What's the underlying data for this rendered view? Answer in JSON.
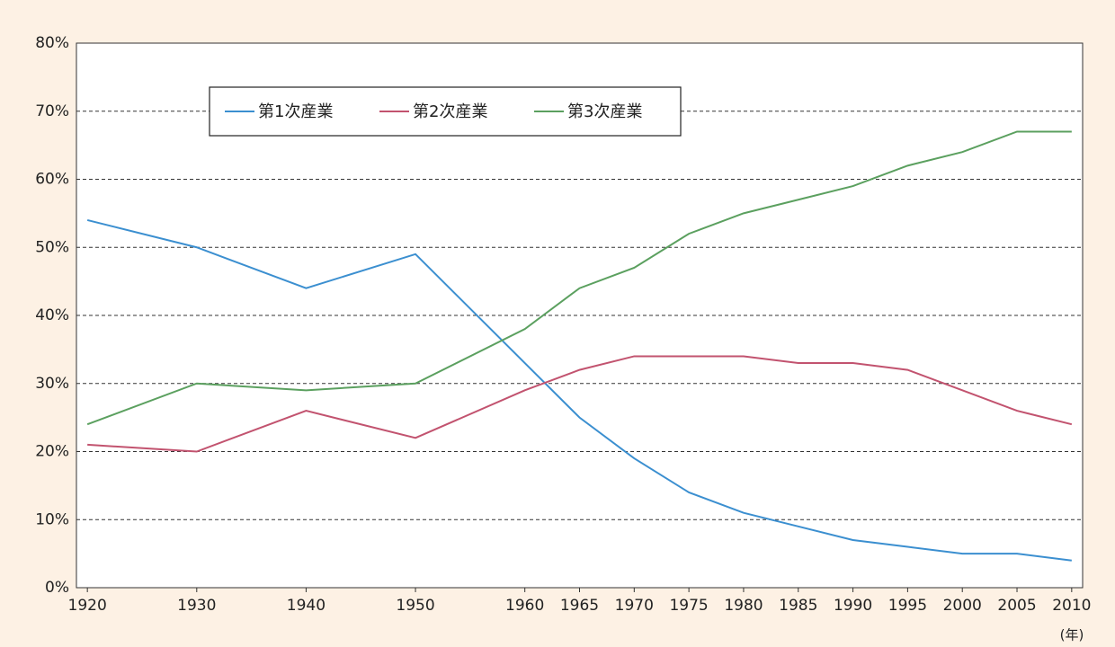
{
  "chart_data": {
    "type": "line",
    "x": [
      1920,
      1930,
      1940,
      1950,
      1960,
      1965,
      1970,
      1975,
      1980,
      1985,
      1990,
      1995,
      2000,
      2005,
      2010
    ],
    "xlim": [
      1919,
      2011
    ],
    "xticks": [
      1920,
      1930,
      1940,
      1950,
      1960,
      1965,
      1970,
      1975,
      1980,
      1985,
      1990,
      1995,
      2000,
      2005,
      2010
    ],
    "xlabel": "(年)",
    "ylim": [
      0,
      80
    ],
    "yticks": [
      {
        "value": 0,
        "label": "0%"
      },
      {
        "value": 10,
        "label": "10%"
      },
      {
        "value": 20,
        "label": "20%"
      },
      {
        "value": 30,
        "label": "30%"
      },
      {
        "value": 40,
        "label": "40%"
      },
      {
        "value": 50,
        "label": "50%"
      },
      {
        "value": 60,
        "label": "60%"
      },
      {
        "value": 70,
        "label": "70%"
      },
      {
        "value": 80,
        "label": "80%"
      }
    ],
    "grid": true,
    "legend": "top-left",
    "series": [
      {
        "name": "第1次産業",
        "color": "#3b8fd0",
        "values": [
          54,
          50,
          44,
          49,
          33,
          25,
          19,
          14,
          11,
          9,
          7,
          6,
          5,
          5,
          4
        ]
      },
      {
        "name": "第2次産業",
        "color": "#c2536f",
        "values": [
          21,
          20,
          26,
          22,
          29,
          32,
          34,
          34,
          34,
          33,
          33,
          32,
          29,
          26,
          24
        ]
      },
      {
        "name": "第3次産業",
        "color": "#5ba05f",
        "values": [
          24,
          30,
          29,
          30,
          38,
          44,
          47,
          52,
          55,
          57,
          59,
          62,
          64,
          67,
          67
        ]
      }
    ]
  }
}
